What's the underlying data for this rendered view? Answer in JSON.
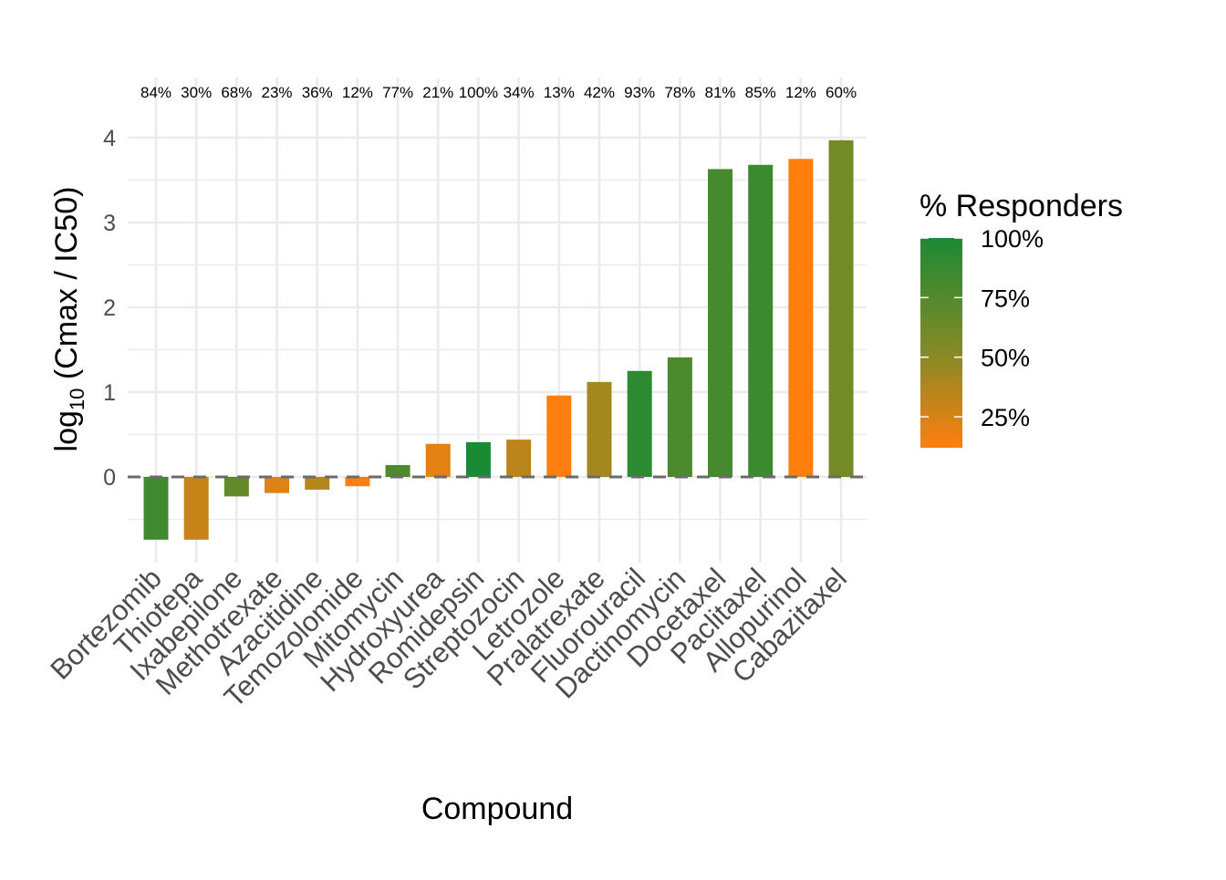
{
  "chart_data": {
    "type": "bar",
    "title": "",
    "xlabel": "Compound",
    "ylabel_main": "log",
    "ylabel_sub": "10",
    "ylabel_rest": " (Cmax / IC50)",
    "ylim": [
      -1.01,
      4.3
    ],
    "yticks": [
      0,
      1,
      2,
      3,
      4
    ],
    "yticks_labels": [
      "0",
      "1",
      "2",
      "3",
      "4"
    ],
    "grid": true,
    "reference_line": 0,
    "categories": [
      "Bortezomib",
      "Thiotepa",
      "Ixabepilone",
      "Methotrexate",
      "Azacitidine",
      "Temozolomide",
      "Mitomycin",
      "Hydroxyurea",
      "Romidepsin",
      "Streptozocin",
      "Letrozole",
      "Pralatrexate",
      "Fluorouracil",
      "Dactinomycin",
      "Docetaxel",
      "Paclitaxel",
      "Allopurinol",
      "Cabazitaxel"
    ],
    "values": [
      -0.74,
      -0.74,
      -0.23,
      -0.19,
      -0.15,
      -0.11,
      0.14,
      0.39,
      0.41,
      0.44,
      0.96,
      1.12,
      1.25,
      1.41,
      3.63,
      3.68,
      3.75,
      3.97
    ],
    "responders_pct": [
      84,
      30,
      68,
      23,
      36,
      12,
      77,
      21,
      100,
      34,
      13,
      42,
      93,
      78,
      81,
      85,
      12,
      60
    ],
    "bar_labels": [
      "84%",
      "30%",
      "68%",
      "23%",
      "36%",
      "12%",
      "77%",
      "21%",
      "100%",
      "34%",
      "13%",
      "42%",
      "93%",
      "78%",
      "81%",
      "85%",
      "12%",
      "60%"
    ],
    "legend": {
      "title": "% Responders",
      "placement": "right",
      "range": [
        12,
        100
      ],
      "breaks": [
        100,
        75,
        50,
        25
      ],
      "labels": [
        "100%",
        "75%",
        "50%",
        "25%"
      ],
      "colors": {
        "low": "#FF7F0E",
        "mid": "#8A8A24",
        "high": "#1B8A34"
      }
    }
  }
}
